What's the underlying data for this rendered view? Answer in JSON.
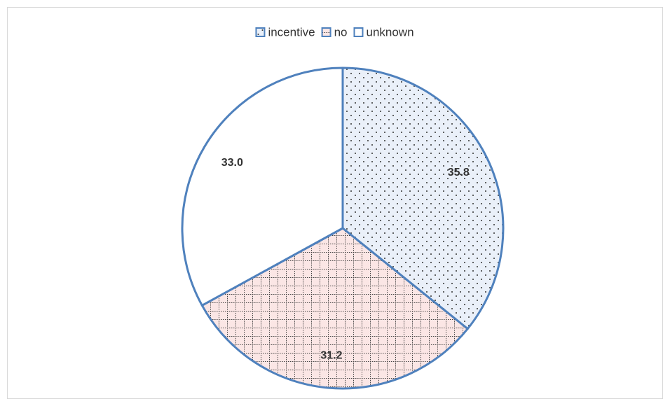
{
  "chart_data": {
    "type": "pie",
    "categories": [
      "incentive",
      "no",
      "unknown"
    ],
    "values": [
      35.8,
      31.2,
      33.0
    ],
    "value_labels": [
      "35.8",
      "31.2",
      "33.0"
    ],
    "colors": [
      "#eaf0f9",
      "#fbe6e5",
      "#ffffff"
    ],
    "edge_color": "#4f81bd",
    "legend": "top"
  }
}
